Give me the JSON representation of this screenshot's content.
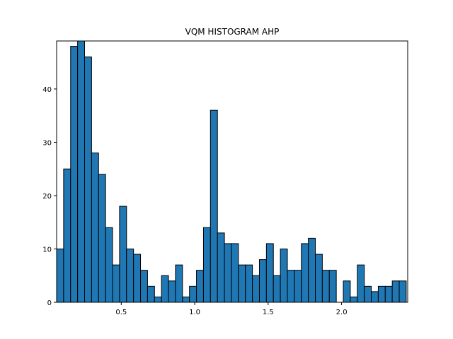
{
  "chart_data": {
    "type": "bar",
    "title": "VQM HISTOGRAM AHP",
    "xlabel": "",
    "ylabel": "",
    "xlim": [
      0.06,
      2.45
    ],
    "ylim": [
      0,
      49
    ],
    "bin_width": 0.0476,
    "bin_start": 0.06,
    "values": [
      10,
      25,
      48,
      49,
      46,
      28,
      24,
      14,
      7,
      18,
      10,
      9,
      6,
      3,
      1,
      5,
      4,
      7,
      1,
      3,
      6,
      14,
      36,
      13,
      11,
      11,
      7,
      7,
      5,
      8,
      11,
      5,
      10,
      6,
      6,
      11,
      12,
      9,
      6,
      6,
      0,
      4,
      1,
      7,
      3,
      2,
      3,
      3,
      4,
      4
    ],
    "x_ticks": [
      {
        "value": 0.5,
        "label": "0.5"
      },
      {
        "value": 1.0,
        "label": "1.0"
      },
      {
        "value": 1.5,
        "label": "1.5"
      },
      {
        "value": 2.0,
        "label": "2.0"
      }
    ],
    "y_ticks": [
      {
        "value": 0,
        "label": "0"
      },
      {
        "value": 10,
        "label": "10"
      },
      {
        "value": 20,
        "label": "20"
      },
      {
        "value": 30,
        "label": "30"
      },
      {
        "value": 40,
        "label": "40"
      }
    ],
    "bar_color": "#1f77b4",
    "edge_color": "#000000",
    "grid": false,
    "legend": "none"
  }
}
